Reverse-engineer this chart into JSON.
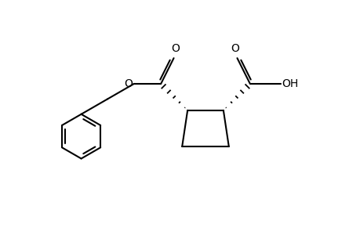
{
  "bg_color": "#ffffff",
  "line_color": "#000000",
  "line_width": 1.5,
  "fig_width": 4.6,
  "fig_height": 3.0,
  "dpi": 100,
  "xlim": [
    0,
    10
  ],
  "ylim": [
    0,
    6.5
  ]
}
